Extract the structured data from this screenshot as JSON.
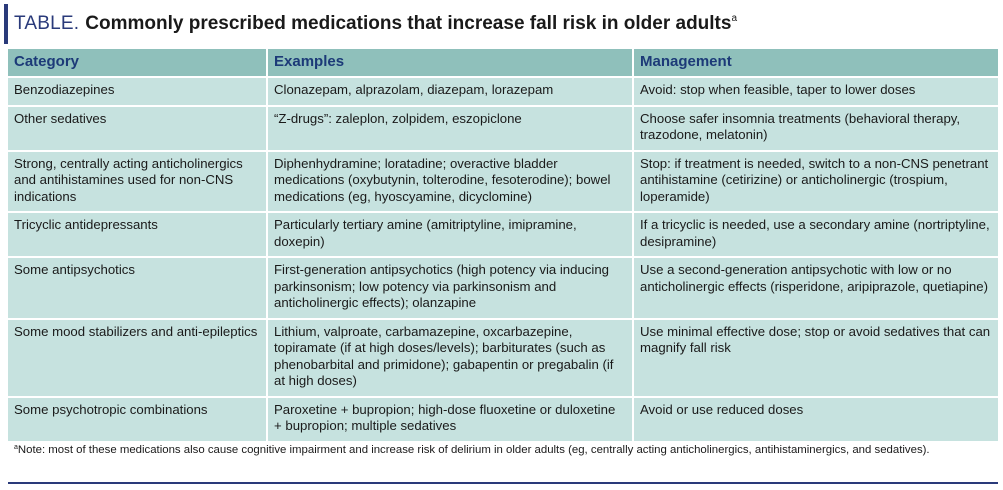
{
  "title": {
    "label": "TABLE.",
    "text": "Commonly prescribed medications that increase fall risk in older adults",
    "superscript": "a"
  },
  "table": {
    "headers": [
      "Category",
      "Examples",
      "Management"
    ],
    "rows": [
      [
        "Benzodiazepines",
        "Clonazepam, alprazolam, diazepam, lorazepam",
        "Avoid: stop when feasible, taper to lower doses"
      ],
      [
        "Other sedatives",
        "“Z-drugs”: zaleplon, zolpidem, eszopiclone",
        "Choose safer insomnia treatments (behavioral therapy, trazodone, melatonin)"
      ],
      [
        "Strong, centrally acting anticholinergics and antihistamines used for non-CNS indications",
        "Diphenhydramine; loratadine; overactive bladder medications (oxybutynin, tolterodine, fesoterodine); bowel medications (eg, hyoscyamine, dicyclomine)",
        "Stop: if treatment is needed, switch to a non-CNS penetrant antihistamine (cetirizine) or anticholinergic (trospium, loperamide)"
      ],
      [
        "Tricyclic antidepressants",
        "Particularly tertiary amine (amitriptyline, imipramine, doxepin)",
        "If a tricyclic is needed, use a secondary amine (nortriptyline, desipramine)"
      ],
      [
        "Some antipsychotics",
        "First-generation antipsychotics (high potency via inducing parkinsonism; low potency via parkinsonism and anticholinergic effects); olanzapine",
        "Use a second-generation antipsychotic with low or no anticholinergic effects (risperidone, aripiprazole, quetiapine)"
      ],
      [
        "Some mood stabilizers and anti-epileptics",
        "Lithium, valproate, carbamazepine, oxcarbazepine, topiramate (if at high doses/levels); barbiturates (such as phenobarbital and primidone); gabapentin or pregabalin (if at high doses)",
        "Use minimal effective dose; stop or avoid sedatives that can magnify fall risk"
      ],
      [
        "Some psychotropic combinations",
        "Paroxetine + bupropion; high-dose fluoxetine or duloxetine + bupropion; multiple sedatives",
        "Avoid or use reduced doses"
      ]
    ]
  },
  "footnote": {
    "marker": "a",
    "text": "Note: most of these medications also cause cognitive impairment and increase risk of delirium in older adults (eg, centrally acting anticholinergics, antihistaminergics, and sedatives)."
  },
  "colors": {
    "accent": "#2a3a7a",
    "header_bg": "#8fc0bb",
    "cell_bg": "#c6e2df"
  }
}
